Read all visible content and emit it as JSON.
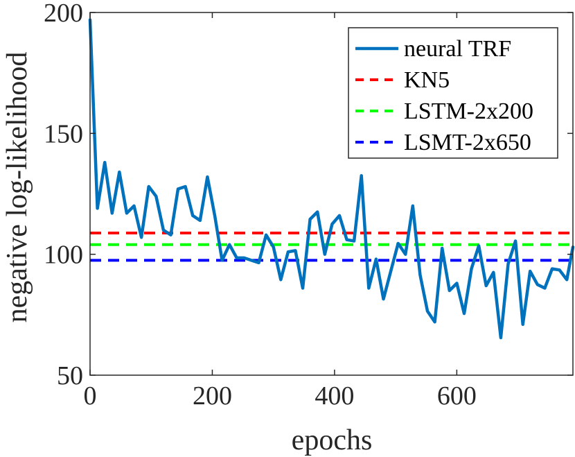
{
  "chart_data": {
    "type": "line",
    "title": "",
    "xlabel": "epochs",
    "ylabel": "negative log-likelihood",
    "xlim": [
      0,
      790
    ],
    "ylim": [
      50,
      200
    ],
    "xticks": [
      0,
      200,
      400,
      600
    ],
    "yticks": [
      50,
      100,
      150,
      200
    ],
    "grid": false,
    "legend_position": "top-right",
    "series": [
      {
        "name": "neural TRF",
        "style": "solid",
        "color": "#0072BD",
        "x": [
          0,
          12,
          24,
          36,
          48,
          60,
          72,
          84,
          96,
          108,
          120,
          132,
          144,
          156,
          168,
          180,
          192,
          204,
          216,
          228,
          240,
          252,
          264,
          276,
          288,
          300,
          312,
          324,
          336,
          348,
          360,
          372,
          384,
          396,
          408,
          420,
          432,
          444,
          456,
          468,
          480,
          492,
          504,
          516,
          528,
          540,
          552,
          564,
          576,
          588,
          600,
          612,
          624,
          636,
          648,
          660,
          672,
          684,
          696,
          708,
          720,
          732,
          744,
          756,
          768,
          780,
          790
        ],
        "y": [
          197,
          119,
          138,
          117,
          134,
          117,
          120,
          107,
          128,
          124,
          110,
          108,
          127,
          128,
          116,
          114,
          132,
          116,
          97.5,
          104,
          98.5,
          98.5,
          97.5,
          96.5,
          108,
          103,
          89.5,
          101,
          101.5,
          86,
          114.5,
          117.5,
          100,
          112.5,
          116,
          106,
          105.5,
          132.5,
          86,
          98,
          81.5,
          93,
          104.5,
          100,
          120,
          91.5,
          76.5,
          72,
          102.5,
          85,
          88,
          75.5,
          94,
          103.5,
          87,
          92.5,
          65.5,
          96,
          105.5,
          71,
          93,
          87.5,
          86,
          94,
          93.5,
          89.5,
          103
        ]
      },
      {
        "name": "KN5",
        "style": "dashed",
        "color": "#FF0000",
        "value": 108.8
      },
      {
        "name": "LSTM-2x200",
        "style": "dashed",
        "color": "#00FF00",
        "value": 104
      },
      {
        "name": "LSMT-2x650",
        "style": "dashed",
        "color": "#0000FF",
        "value": 97.5
      }
    ]
  }
}
